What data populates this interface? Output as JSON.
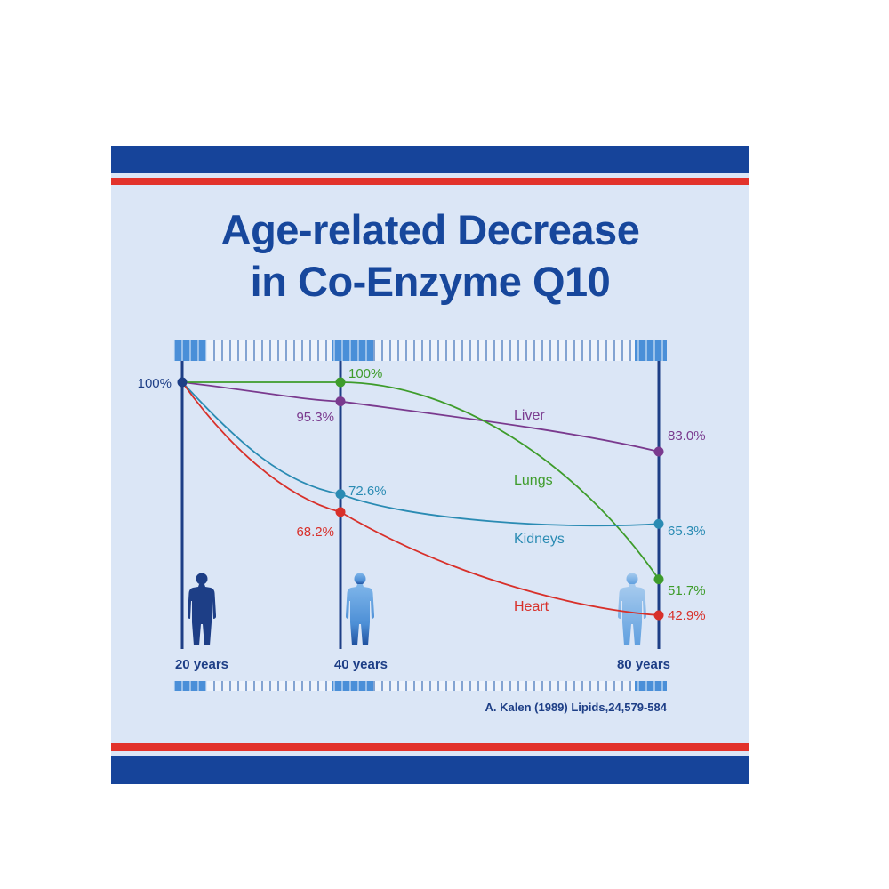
{
  "title": {
    "line1": "Age-related Decrease",
    "line2": "in Co-Enzyme Q10"
  },
  "source": "A. Kalen (1989) Lipids,24,579-584",
  "colors": {
    "brand_blue": "#16449a",
    "brand_red": "#e2322b",
    "panel_background": "#dbe6f6",
    "liver": "#7a3a8e",
    "lungs": "#3e9c2b",
    "kidneys": "#2a8bb3",
    "heart": "#d8302a",
    "baseline": "#1d3e86"
  },
  "icons": [
    "human-figure-icon",
    "human-figure-icon",
    "human-figure-icon"
  ],
  "chart_data": {
    "type": "line",
    "x": [
      20,
      40,
      80
    ],
    "x_tick_labels": [
      "20 years",
      "40 years",
      "80 years"
    ],
    "y_unit": "%",
    "start_label": "100%",
    "grid": false,
    "series": [
      {
        "name": "Liver",
        "values": [
          100,
          95.3,
          83.0
        ],
        "labels": [
          "",
          "95.3%",
          "83.0%"
        ],
        "color": "#7a3a8e"
      },
      {
        "name": "Lungs",
        "values": [
          100,
          100,
          51.7
        ],
        "labels": [
          "",
          "100%",
          "51.7%"
        ],
        "color": "#3e9c2b"
      },
      {
        "name": "Kidneys",
        "values": [
          100,
          72.6,
          65.3
        ],
        "labels": [
          "",
          "72.6%",
          "65.3%"
        ],
        "color": "#2a8bb3"
      },
      {
        "name": "Heart",
        "values": [
          100,
          68.2,
          42.9
        ],
        "labels": [
          "",
          "68.2%",
          "42.9%"
        ],
        "color": "#d8302a"
      }
    ]
  }
}
